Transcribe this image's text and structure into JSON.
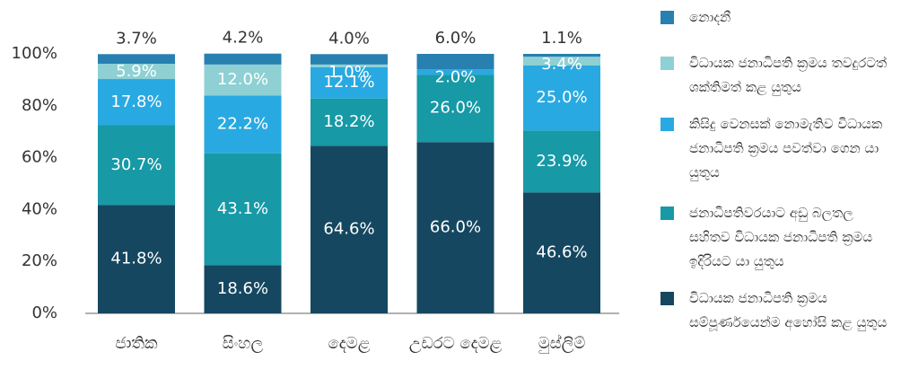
{
  "chart_data": {
    "type": "stacked-bar",
    "categories": [
      "ජාතික",
      "සිංහල",
      "දෙමළ",
      "උඩරට දෙමළ",
      "මුස්ලිම්"
    ],
    "series": [
      {
        "name": "නොදනී",
        "color": "#2780b0",
        "values": [
          3.7,
          4.2,
          4.0,
          6.0,
          1.1
        ],
        "value_labels": [
          "3.7%",
          "4.2%",
          "4.0%",
          "6.0%",
          "1.1%"
        ]
      },
      {
        "name": "විධායක ජනාධිපති ක්‍රමය තවදුරටත් ශක්තිමත් කළ යුතුය",
        "color": "#8ed0d3",
        "values": [
          5.9,
          12.0,
          1.0,
          null,
          3.4
        ],
        "value_labels": [
          "5.9%",
          "12.0%",
          "1.0%",
          null,
          "3.4%"
        ]
      },
      {
        "name": "කිසිදු වෙනසක් නොමැතිව විධායක ජනාධිපති ක්‍රමය පවත්වා ගෙන යා යුතුය",
        "color": "#29a9e1",
        "values": [
          17.8,
          22.2,
          12.1,
          2.0,
          25.0
        ],
        "value_labels": [
          "17.8%",
          "22.2%",
          "12.1%",
          "2.0%",
          "25.0%"
        ]
      },
      {
        "name": "ජනාධිපතිවරයාට අඩු බලතල සහිතව විධායක ජනාධිපති ක්‍රමය ඉදිරියට යා යුතුය",
        "color": "#1799a6",
        "values": [
          30.7,
          43.1,
          18.2,
          26.0,
          23.9
        ],
        "value_labels": [
          "30.7%",
          "43.1%",
          "18.2%",
          "26.0%",
          "23.9%"
        ]
      },
      {
        "name": "විධායක ජනාධිපති ක්‍රමය සම්පූර්ණයෙන්ම අහෝසි කළ යුතුය",
        "color": "#154760",
        "values": [
          41.8,
          18.6,
          64.6,
          66.0,
          46.6
        ],
        "value_labels": [
          "41.8%",
          "18.6%",
          "64.6%",
          "66.0%",
          "46.6%"
        ]
      }
    ],
    "ylim": [
      0,
      100
    ],
    "yticks": [
      {
        "value": 0,
        "label": "0%"
      },
      {
        "value": 20,
        "label": "20%"
      },
      {
        "value": 40,
        "label": "40%"
      },
      {
        "value": 60,
        "label": "60%"
      },
      {
        "value": 80,
        "label": "80%"
      },
      {
        "value": 100,
        "label": "100%"
      }
    ]
  }
}
